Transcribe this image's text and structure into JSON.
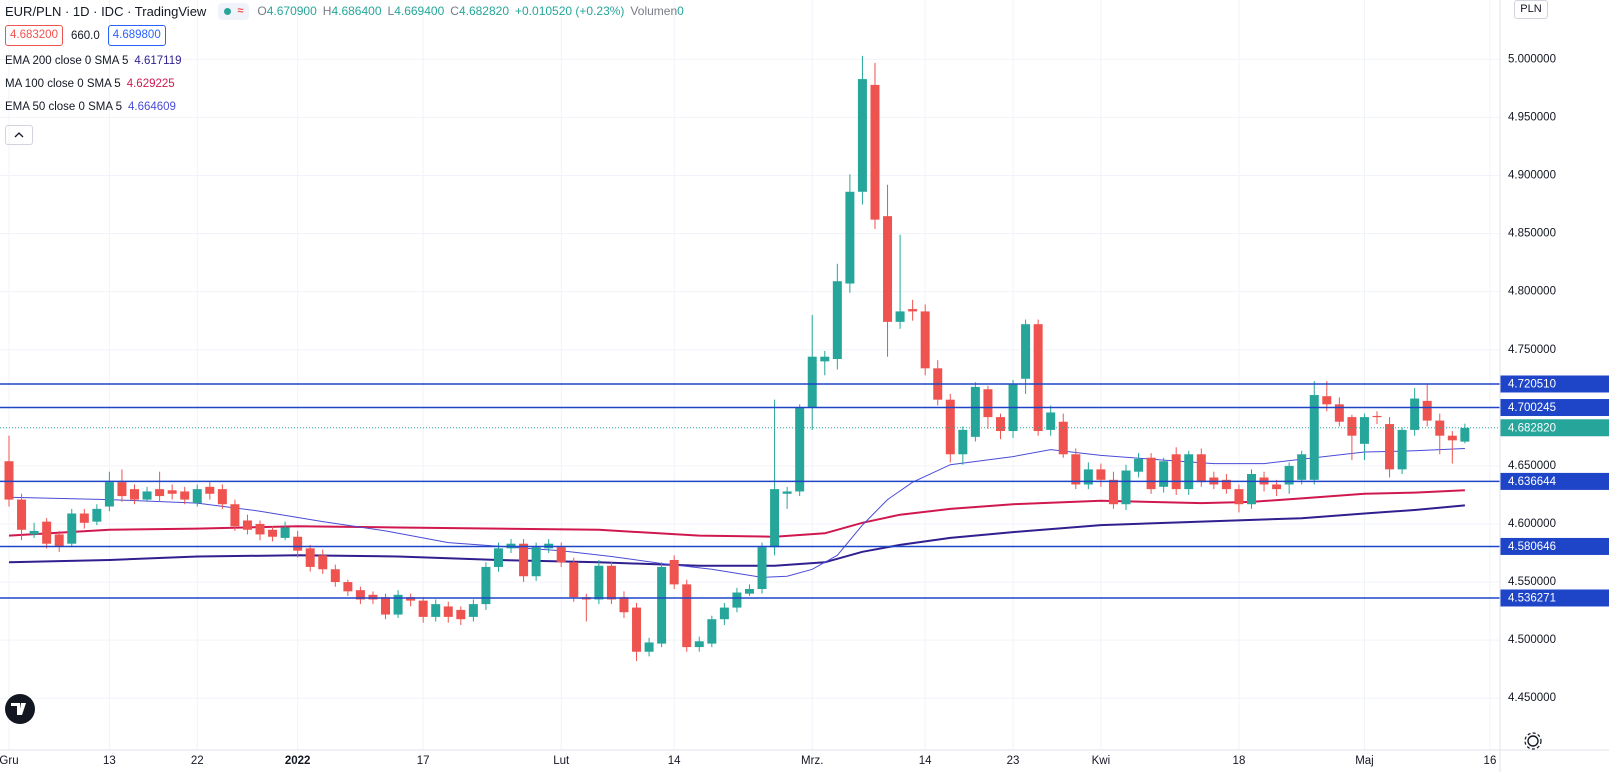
{
  "header": {
    "symbol": "EUR/PLN · 1D · IDC · TradingView",
    "ohlc": [
      {
        "key": "O",
        "value": "4.670900"
      },
      {
        "key": "H",
        "value": "4.686400"
      },
      {
        "key": "L",
        "value": "4.669400"
      },
      {
        "key": "C",
        "value": "4.682820"
      }
    ],
    "change": "+0.010520 (+0.23%)",
    "volume_label": "Volumen",
    "volume": "0"
  },
  "trade": {
    "sell": "4.683200",
    "spread": "660.0",
    "buy": "4.689800"
  },
  "chart_data": {
    "type": "candlestick",
    "currency": "PLN",
    "up_color": "#26a69a",
    "down_color": "#ef5350",
    "grid": true,
    "ylim": [
      4.4054,
      5.0511
    ],
    "yticks": [
      {
        "value": 5.0,
        "label": "5.000000"
      },
      {
        "value": 4.95,
        "label": "4.950000"
      },
      {
        "value": 4.9,
        "label": "4.900000"
      },
      {
        "value": 4.85,
        "label": "4.850000"
      },
      {
        "value": 4.8,
        "label": "4.800000"
      },
      {
        "value": 4.75,
        "label": "4.750000"
      },
      {
        "value": 4.65,
        "label": "4.650000"
      },
      {
        "value": 4.6,
        "label": "4.600000"
      },
      {
        "value": 4.55,
        "label": "4.550000"
      },
      {
        "value": 4.5,
        "label": "4.500000"
      },
      {
        "value": 4.45,
        "label": "4.450000"
      }
    ],
    "xlim": [
      -0.717,
      118.8
    ],
    "xticks": [
      {
        "value": 0,
        "label": "Gru"
      },
      {
        "value": 8,
        "label": "13"
      },
      {
        "value": 15,
        "label": "22"
      },
      {
        "value": 23,
        "label": "2022"
      },
      {
        "value": 33,
        "label": "17"
      },
      {
        "value": 44,
        "label": "Lut"
      },
      {
        "value": 53,
        "label": "14"
      },
      {
        "value": 64,
        "label": "Mrz."
      },
      {
        "value": 73,
        "label": "14"
      },
      {
        "value": 80,
        "label": "23"
      },
      {
        "value": 87,
        "label": "Kwi"
      },
      {
        "value": 98,
        "label": "18"
      },
      {
        "value": 108,
        "label": "Maj"
      },
      {
        "value": 118,
        "label": "16"
      }
    ],
    "candles": {
      "open": [
        4.654,
        4.621,
        4.591,
        4.602,
        4.591,
        4.583,
        4.609,
        4.602,
        4.615,
        4.636,
        4.63,
        4.621,
        4.63,
        4.629,
        4.628,
        4.618,
        4.632,
        4.63,
        4.617,
        4.603,
        4.6,
        4.595,
        4.588,
        4.589,
        4.579,
        4.573,
        4.561,
        4.55,
        4.543,
        4.539,
        4.537,
        4.522,
        4.537,
        4.534,
        4.52,
        4.529,
        4.526,
        4.52,
        4.531,
        4.563,
        4.579,
        4.583,
        4.555,
        4.579,
        4.58,
        4.567,
        4.537,
        4.535,
        4.564,
        4.537,
        4.528,
        4.49,
        4.497,
        4.569,
        4.548,
        4.494,
        4.497,
        4.518,
        4.528,
        4.54,
        4.544,
        4.58,
        4.626,
        4.628,
        4.7,
        4.74,
        4.742,
        4.807,
        4.886,
        4.978,
        4.865,
        4.774,
        4.785,
        4.783,
        4.734,
        4.707,
        4.66,
        4.675,
        4.716,
        4.692,
        4.68,
        4.725,
        4.772,
        4.681,
        4.688,
        4.66,
        4.634,
        4.647,
        4.638,
        4.617,
        4.645,
        4.657,
        4.632,
        4.66,
        4.63,
        4.66,
        4.64,
        4.638,
        4.63,
        4.617,
        4.64,
        4.634,
        4.634,
        4.638,
        4.638,
        4.71,
        4.703,
        4.692,
        4.669,
        4.693,
        4.686,
        4.647,
        4.681,
        4.706,
        4.689,
        4.676,
        4.6709
      ],
      "high": [
        4.676,
        4.626,
        4.601,
        4.605,
        4.594,
        4.613,
        4.613,
        4.617,
        4.645,
        4.647,
        4.634,
        4.632,
        4.645,
        4.634,
        4.632,
        4.634,
        4.636,
        4.634,
        4.621,
        4.608,
        4.603,
        4.598,
        4.602,
        4.594,
        4.582,
        4.578,
        4.565,
        4.552,
        4.546,
        4.542,
        4.54,
        4.543,
        4.54,
        4.537,
        4.535,
        4.533,
        4.529,
        4.535,
        4.567,
        4.584,
        4.587,
        4.587,
        4.584,
        4.587,
        4.584,
        4.571,
        4.54,
        4.569,
        4.567,
        4.542,
        4.532,
        4.502,
        4.567,
        4.573,
        4.552,
        4.503,
        4.521,
        4.532,
        4.545,
        4.548,
        4.584,
        4.707,
        4.632,
        4.703,
        4.78,
        4.749,
        4.824,
        4.901,
        5.003,
        4.997,
        4.892,
        4.849,
        4.793,
        4.789,
        4.741,
        4.712,
        4.684,
        4.722,
        4.719,
        4.695,
        4.724,
        4.776,
        4.776,
        4.702,
        4.695,
        4.665,
        4.653,
        4.652,
        4.645,
        4.651,
        4.661,
        4.661,
        4.657,
        4.666,
        4.663,
        4.665,
        4.645,
        4.643,
        4.634,
        4.647,
        4.645,
        4.638,
        4.653,
        4.663,
        4.723,
        4.723,
        4.709,
        4.694,
        4.695,
        4.697,
        4.692,
        4.683,
        4.717,
        4.72,
        4.695,
        4.68,
        4.6864
      ],
      "low": [
        4.615,
        4.586,
        4.588,
        4.579,
        4.576,
        4.58,
        4.596,
        4.599,
        4.611,
        4.619,
        4.617,
        4.619,
        4.619,
        4.621,
        4.617,
        4.615,
        4.621,
        4.613,
        4.594,
        4.591,
        4.586,
        4.585,
        4.586,
        4.571,
        4.559,
        4.557,
        4.546,
        4.538,
        4.531,
        4.531,
        4.518,
        4.519,
        4.529,
        4.515,
        4.516,
        4.515,
        4.513,
        4.516,
        4.526,
        4.559,
        4.575,
        4.55,
        4.551,
        4.575,
        4.563,
        4.533,
        4.516,
        4.531,
        4.531,
        4.519,
        4.482,
        4.486,
        4.494,
        4.544,
        4.49,
        4.49,
        4.494,
        4.513,
        4.524,
        4.538,
        4.54,
        4.573,
        4.613,
        4.624,
        4.681,
        4.728,
        4.733,
        4.799,
        4.875,
        4.854,
        4.744,
        4.768,
        4.775,
        4.728,
        4.702,
        4.653,
        4.651,
        4.671,
        4.682,
        4.673,
        4.674,
        4.712,
        4.676,
        4.676,
        4.657,
        4.63,
        4.63,
        4.632,
        4.613,
        4.612,
        4.64,
        4.626,
        4.627,
        4.625,
        4.625,
        4.632,
        4.63,
        4.626,
        4.61,
        4.613,
        4.628,
        4.624,
        4.626,
        4.634,
        4.634,
        4.697,
        4.684,
        4.655,
        4.655,
        4.686,
        4.64,
        4.643,
        4.676,
        4.684,
        4.66,
        4.652,
        4.6694
      ],
      "close": [
        4.621,
        4.595,
        4.594,
        4.583,
        4.581,
        4.609,
        4.601,
        4.613,
        4.636,
        4.624,
        4.621,
        4.628,
        4.624,
        4.626,
        4.621,
        4.63,
        4.626,
        4.617,
        4.598,
        4.595,
        4.591,
        4.589,
        4.597,
        4.577,
        4.563,
        4.561,
        4.55,
        4.542,
        4.535,
        4.535,
        4.522,
        4.539,
        4.534,
        4.52,
        4.531,
        4.52,
        4.518,
        4.531,
        4.563,
        4.579,
        4.583,
        4.555,
        4.58,
        4.583,
        4.567,
        4.537,
        4.535,
        4.564,
        4.535,
        4.524,
        4.49,
        4.498,
        4.563,
        4.548,
        4.494,
        4.499,
        4.518,
        4.528,
        4.541,
        4.544,
        4.58,
        4.63,
        4.628,
        4.7,
        4.744,
        4.744,
        4.809,
        4.886,
        4.983,
        4.862,
        4.774,
        4.783,
        4.783,
        4.734,
        4.707,
        4.66,
        4.681,
        4.718,
        4.692,
        4.68,
        4.72,
        4.772,
        4.68,
        4.696,
        4.66,
        4.634,
        4.647,
        4.638,
        4.617,
        4.646,
        4.656,
        4.63,
        4.654,
        4.63,
        4.66,
        4.636,
        4.634,
        4.63,
        4.617,
        4.643,
        4.634,
        4.63,
        4.65,
        4.66,
        4.711,
        4.703,
        4.688,
        4.676,
        4.692,
        4.692,
        4.647,
        4.681,
        4.708,
        4.689,
        4.676,
        4.672,
        4.68282
      ]
    },
    "indicators": [
      {
        "name": "EMA 200 close 0 SMA 5",
        "last": 4.617119,
        "color": "#2f1f8f",
        "x": [
          0,
          8,
          15,
          23,
          31,
          39,
          47,
          55,
          61,
          65,
          68,
          71,
          75,
          80,
          87,
          95,
          103,
          108,
          112,
          116
        ],
        "values": [
          4.567,
          4.569,
          4.572,
          4.573,
          4.572,
          4.569,
          4.567,
          4.564,
          4.564,
          4.567,
          4.576,
          4.582,
          4.588,
          4.593,
          4.599,
          4.602,
          4.605,
          4.609,
          4.612,
          4.616
        ]
      },
      {
        "name": "MA 100 close 0 SMA 5",
        "last": 4.629225,
        "color": "#d0184f",
        "x": [
          0,
          8,
          15,
          23,
          31,
          39,
          47,
          55,
          61,
          65,
          68,
          71,
          75,
          80,
          87,
          95,
          99,
          103,
          108,
          112,
          116
        ],
        "values": [
          4.59,
          4.595,
          4.596,
          4.598,
          4.597,
          4.596,
          4.595,
          4.59,
          4.589,
          4.592,
          4.601,
          4.608,
          4.613,
          4.617,
          4.62,
          4.618,
          4.619,
          4.622,
          4.626,
          4.627,
          4.629
        ]
      },
      {
        "name": "EMA 50 close 0 SMA 5",
        "last": 4.664609,
        "color": "#4b4bd6",
        "x": [
          0,
          8,
          15,
          20,
          25,
          30,
          35,
          40,
          44,
          48,
          52,
          56,
          60,
          62,
          64,
          66,
          68,
          70,
          72,
          75,
          80,
          83,
          87,
          92,
          96,
          100,
          104,
          108,
          112,
          116
        ],
        "values": [
          4.623,
          4.621,
          4.618,
          4.611,
          4.602,
          4.594,
          4.584,
          4.58,
          4.577,
          4.572,
          4.566,
          4.561,
          4.554,
          4.555,
          4.561,
          4.573,
          4.599,
          4.621,
          4.636,
          4.651,
          4.658,
          4.664,
          4.659,
          4.655,
          4.652,
          4.652,
          4.657,
          4.662,
          4.663,
          4.665
        ]
      }
    ],
    "level_color": "#1e45c8",
    "levels": [
      {
        "value": 4.72051,
        "label": "4.720510"
      },
      {
        "value": 4.700245,
        "label": "4.700245"
      },
      {
        "value": 4.636644,
        "label": "4.636644"
      },
      {
        "value": 4.580646,
        "label": "4.580646"
      },
      {
        "value": 4.536271,
        "label": "4.536271"
      }
    ],
    "last_price": {
      "value": 4.68282,
      "label": "4.682820",
      "color": "#26a69a"
    }
  }
}
